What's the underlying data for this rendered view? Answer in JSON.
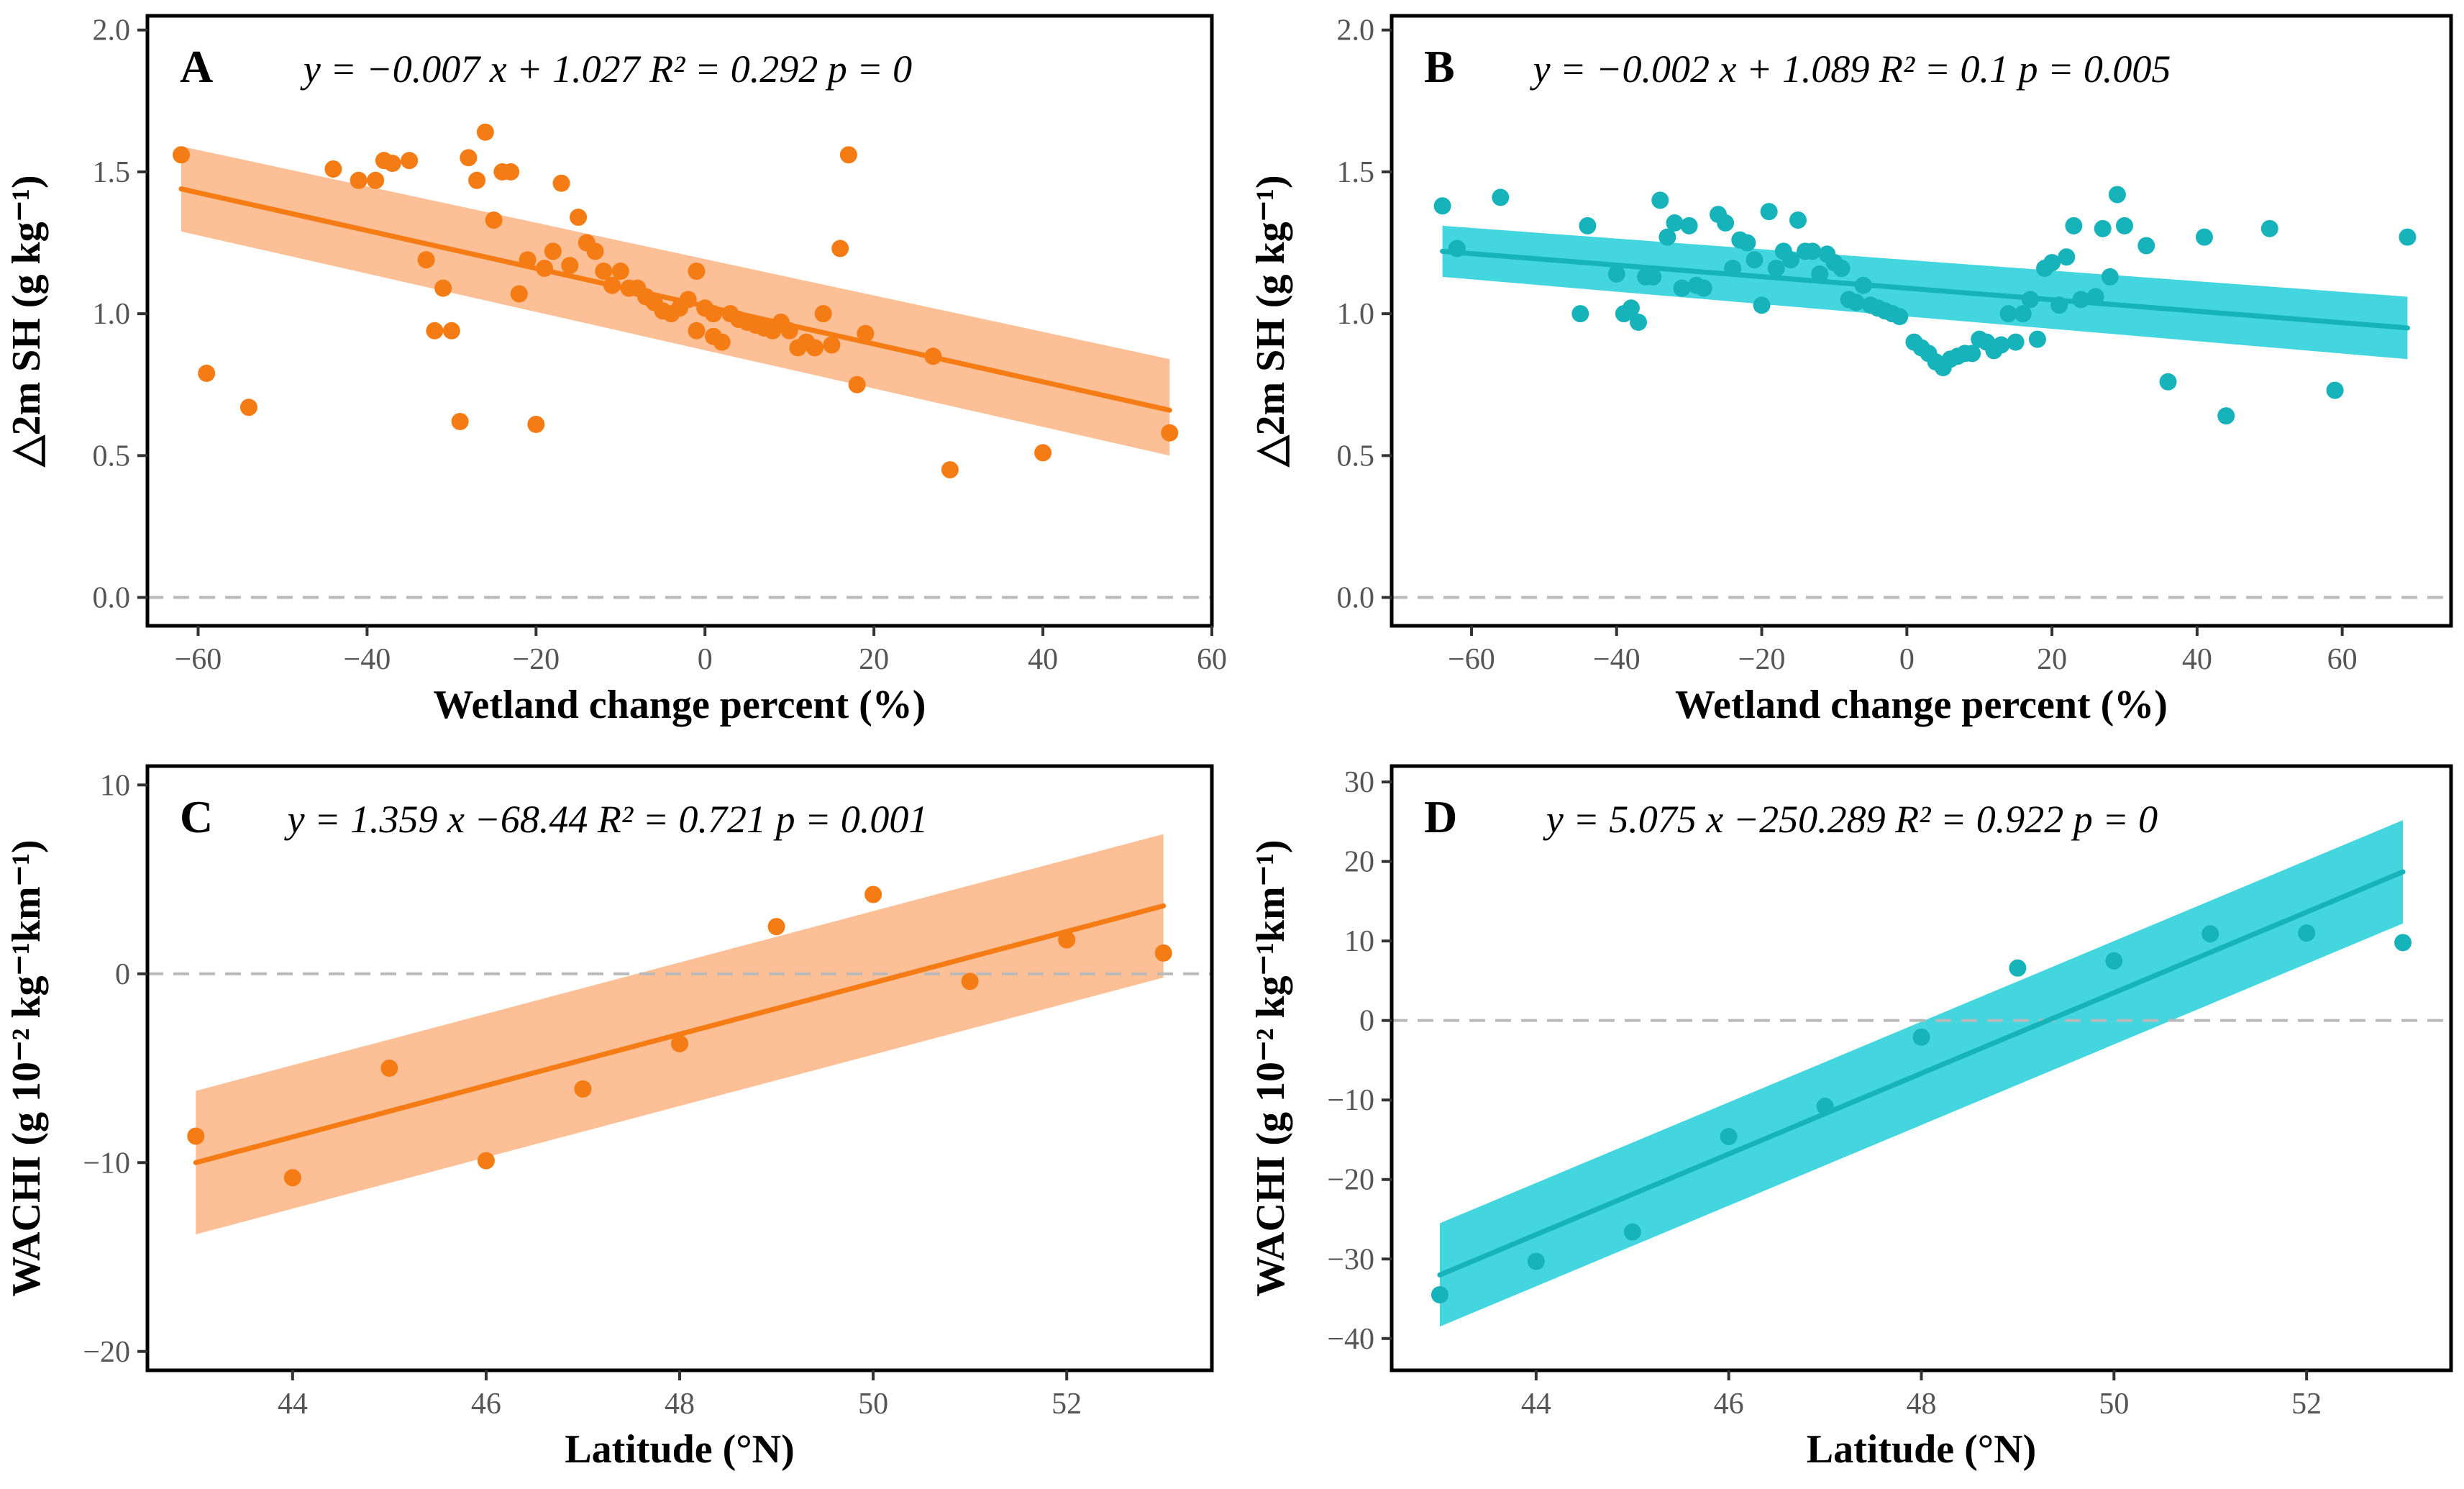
{
  "chart_data": [
    {
      "panel": "A",
      "type": "scatter",
      "equation": "y = −0.007 x + 1.027   R² = 0.292   p = 0",
      "xlabel": "Wetland change percent (%)",
      "ylabel": "△2m SH (g kg⁻¹)",
      "xlim": [
        -66,
        60
      ],
      "ylim": [
        -0.1,
        2.05
      ],
      "xticks": [
        -60,
        -40,
        -20,
        0,
        20,
        40,
        60
      ],
      "yticks": [
        0.0,
        0.5,
        1.0,
        1.5,
        2.0
      ],
      "xtick_labels": [
        "−60",
        "−40",
        "−20",
        "0",
        "20",
        "40",
        "60"
      ],
      "ytick_labels": [
        "0.0",
        "0.5",
        "1.0",
        "1.5",
        "2.0"
      ],
      "reference_line_y": 0,
      "color": "#f57c14",
      "band_color": "#fdb88a",
      "fit": {
        "x": [
          -62,
          55
        ],
        "y": [
          1.44,
          0.66
        ],
        "ci_low": [
          1.29,
          0.5
        ],
        "ci_high": [
          1.59,
          0.84
        ]
      },
      "points": [
        [
          -62,
          1.56
        ],
        [
          -59,
          0.79
        ],
        [
          -54,
          0.67
        ],
        [
          -44,
          1.51
        ],
        [
          -41,
          1.47
        ],
        [
          -39,
          1.47
        ],
        [
          -38,
          1.54
        ],
        [
          -37,
          1.53
        ],
        [
          -35,
          1.54
        ],
        [
          -33,
          1.19
        ],
        [
          -32,
          0.94
        ],
        [
          -31,
          1.09
        ],
        [
          -30,
          0.94
        ],
        [
          -29,
          0.62
        ],
        [
          -28,
          1.55
        ],
        [
          -27,
          1.47
        ],
        [
          -26,
          1.64
        ],
        [
          -25,
          1.33
        ],
        [
          -24,
          1.5
        ],
        [
          -23,
          1.5
        ],
        [
          -22,
          1.07
        ],
        [
          -21,
          1.19
        ],
        [
          -20,
          0.61
        ],
        [
          -19,
          1.16
        ],
        [
          -18,
          1.22
        ],
        [
          -17,
          1.46
        ],
        [
          -16,
          1.17
        ],
        [
          -15,
          1.34
        ],
        [
          -14,
          1.25
        ],
        [
          -13,
          1.22
        ],
        [
          -12,
          1.15
        ],
        [
          -11,
          1.1
        ],
        [
          -10,
          1.15
        ],
        [
          -9,
          1.09
        ],
        [
          -8,
          1.09
        ],
        [
          -7,
          1.06
        ],
        [
          -6,
          1.04
        ],
        [
          -5,
          1.01
        ],
        [
          -4,
          1.0
        ],
        [
          -3,
          1.02
        ],
        [
          -2,
          1.05
        ],
        [
          -1,
          1.15
        ],
        [
          -1,
          0.94
        ],
        [
          0,
          1.02
        ],
        [
          1,
          1.0
        ],
        [
          1,
          0.92
        ],
        [
          2,
          0.9
        ],
        [
          3,
          1.0
        ],
        [
          4,
          0.98
        ],
        [
          5,
          0.97
        ],
        [
          6,
          0.96
        ],
        [
          7,
          0.95
        ],
        [
          8,
          0.94
        ],
        [
          9,
          0.97
        ],
        [
          10,
          0.94
        ],
        [
          11,
          0.88
        ],
        [
          12,
          0.9
        ],
        [
          13,
          0.88
        ],
        [
          14,
          1.0
        ],
        [
          15,
          0.89
        ],
        [
          16,
          1.23
        ],
        [
          17,
          1.56
        ],
        [
          18,
          0.75
        ],
        [
          19,
          0.93
        ],
        [
          27,
          0.85
        ],
        [
          29,
          0.45
        ],
        [
          40,
          0.51
        ],
        [
          55,
          0.58
        ]
      ]
    },
    {
      "panel": "B",
      "type": "scatter",
      "equation": "y = −0.002 x + 1.089   R² = 0.1   p = 0.005",
      "xlabel": "Wetland change percent (%)",
      "ylabel": "△2m SH (g kg⁻¹)",
      "xlim": [
        -71,
        75
      ],
      "ylim": [
        -0.1,
        2.05
      ],
      "xticks": [
        -60,
        -40,
        -20,
        0,
        20,
        40,
        60
      ],
      "yticks": [
        0.0,
        0.5,
        1.0,
        1.5,
        2.0
      ],
      "xtick_labels": [
        "−60",
        "−40",
        "−20",
        "0",
        "20",
        "40",
        "60"
      ],
      "ytick_labels": [
        "0.0",
        "0.5",
        "1.0",
        "1.5",
        "2.0"
      ],
      "reference_line_y": 0,
      "color": "#17b3bb",
      "band_color": "#2fd1dc",
      "fit": {
        "x": [
          -64,
          69
        ],
        "y": [
          1.22,
          0.95
        ],
        "ci_low": [
          1.13,
          0.84
        ],
        "ci_high": [
          1.31,
          1.06
        ]
      },
      "points": [
        [
          -64,
          1.38
        ],
        [
          -62,
          1.23
        ],
        [
          -56,
          1.41
        ],
        [
          -45,
          1.0
        ],
        [
          -44,
          1.31
        ],
        [
          -40,
          1.14
        ],
        [
          -39,
          1.0
        ],
        [
          -38,
          1.02
        ],
        [
          -37,
          0.97
        ],
        [
          -36,
          1.13
        ],
        [
          -35,
          1.13
        ],
        [
          -34,
          1.4
        ],
        [
          -33,
          1.27
        ],
        [
          -32,
          1.32
        ],
        [
          -31,
          1.09
        ],
        [
          -30,
          1.31
        ],
        [
          -29,
          1.1
        ],
        [
          -28,
          1.09
        ],
        [
          -26,
          1.35
        ],
        [
          -25,
          1.32
        ],
        [
          -24,
          1.16
        ],
        [
          -23,
          1.26
        ],
        [
          -22,
          1.25
        ],
        [
          -21,
          1.19
        ],
        [
          -20,
          1.03
        ],
        [
          -19,
          1.36
        ],
        [
          -18,
          1.16
        ],
        [
          -17,
          1.22
        ],
        [
          -16,
          1.19
        ],
        [
          -15,
          1.33
        ],
        [
          -14,
          1.22
        ],
        [
          -13,
          1.22
        ],
        [
          -12,
          1.14
        ],
        [
          -11,
          1.21
        ],
        [
          -10,
          1.18
        ],
        [
          -9,
          1.16
        ],
        [
          -8,
          1.05
        ],
        [
          -7,
          1.04
        ],
        [
          -6,
          1.1
        ],
        [
          -5,
          1.03
        ],
        [
          -4,
          1.02
        ],
        [
          -3,
          1.01
        ],
        [
          -2,
          1.0
        ],
        [
          -1,
          0.99
        ],
        [
          1,
          0.9
        ],
        [
          2,
          0.88
        ],
        [
          3,
          0.86
        ],
        [
          4,
          0.83
        ],
        [
          5,
          0.81
        ],
        [
          6,
          0.84
        ],
        [
          7,
          0.85
        ],
        [
          8,
          0.86
        ],
        [
          9,
          0.86
        ],
        [
          10,
          0.91
        ],
        [
          11,
          0.9
        ],
        [
          12,
          0.87
        ],
        [
          13,
          0.89
        ],
        [
          14,
          1.0
        ],
        [
          15,
          0.9
        ],
        [
          16,
          1.0
        ],
        [
          17,
          1.05
        ],
        [
          18,
          0.91
        ],
        [
          19,
          1.16
        ],
        [
          20,
          1.18
        ],
        [
          21,
          1.03
        ],
        [
          22,
          1.2
        ],
        [
          23,
          1.31
        ],
        [
          24,
          1.05
        ],
        [
          26,
          1.06
        ],
        [
          27,
          1.3
        ],
        [
          28,
          1.13
        ],
        [
          29,
          1.42
        ],
        [
          30,
          1.31
        ],
        [
          33,
          1.24
        ],
        [
          36,
          0.76
        ],
        [
          41,
          1.27
        ],
        [
          44,
          0.64
        ],
        [
          50,
          1.3
        ],
        [
          59,
          0.73
        ],
        [
          69,
          1.27
        ]
      ]
    },
    {
      "panel": "C",
      "type": "scatter",
      "equation": "y = 1.359 x −68.44   R² = 0.721   p = 0.001",
      "xlabel": "Latitude (°N)",
      "ylabel": "WACHI (g 10⁻² kg⁻¹km⁻¹)",
      "xlim": [
        42.5,
        53.5
      ],
      "ylim": [
        -21,
        11
      ],
      "xticks": [
        44,
        46,
        48,
        50,
        52
      ],
      "yticks": [
        -20,
        -10,
        0,
        10
      ],
      "xtick_labels": [
        "44",
        "46",
        "48",
        "50",
        "52"
      ],
      "ytick_labels": [
        "−20",
        "−10",
        "0",
        "10"
      ],
      "reference_line_y": 0,
      "color": "#f57c14",
      "band_color": "#fdb88a",
      "fit": {
        "x": [
          43,
          53
        ],
        "y": [
          -10.0,
          3.6
        ],
        "ci_low": [
          -13.8,
          -0.2
        ],
        "ci_high": [
          -6.2,
          7.4
        ]
      },
      "points": [
        [
          43,
          -8.6
        ],
        [
          44,
          -10.8
        ],
        [
          45,
          -5.0
        ],
        [
          46,
          -9.9
        ],
        [
          47,
          -6.1
        ],
        [
          48,
          -3.7
        ],
        [
          49,
          2.5
        ],
        [
          50,
          4.2
        ],
        [
          51,
          -0.4
        ],
        [
          52,
          1.8
        ],
        [
          53,
          1.1
        ]
      ]
    },
    {
      "panel": "D",
      "type": "scatter",
      "equation": "y = 5.075 x −250.289   R² = 0.922   p = 0",
      "xlabel": "Latitude (°N)",
      "ylabel": "WACHI (g 10⁻² kg⁻¹km⁻¹)",
      "xlim": [
        42.5,
        53.5
      ],
      "ylim": [
        -44,
        32
      ],
      "xticks": [
        44,
        46,
        48,
        50,
        52
      ],
      "yticks": [
        -40,
        -30,
        -20,
        -10,
        0,
        10,
        20,
        30
      ],
      "xtick_labels": [
        "44",
        "46",
        "48",
        "50",
        "52"
      ],
      "ytick_labels": [
        "−40",
        "−30",
        "−20",
        "−10",
        "0",
        "10",
        "20",
        "30"
      ],
      "reference_line_y": 0,
      "color": "#17b3bb",
      "band_color": "#2fd1dc",
      "fit": {
        "x": [
          43,
          53
        ],
        "y": [
          -32.0,
          18.7
        ],
        "ci_low": [
          -38.5,
          12.2
        ],
        "ci_high": [
          -25.5,
          25.2
        ]
      },
      "points": [
        [
          43,
          -34.5
        ],
        [
          44,
          -30.3
        ],
        [
          45,
          -26.6
        ],
        [
          46,
          -14.6
        ],
        [
          47,
          -10.8
        ],
        [
          48,
          -2.1
        ],
        [
          49,
          6.6
        ],
        [
          50,
          7.5
        ],
        [
          51,
          10.9
        ],
        [
          52,
          11.0
        ],
        [
          53,
          9.8
        ]
      ]
    }
  ]
}
